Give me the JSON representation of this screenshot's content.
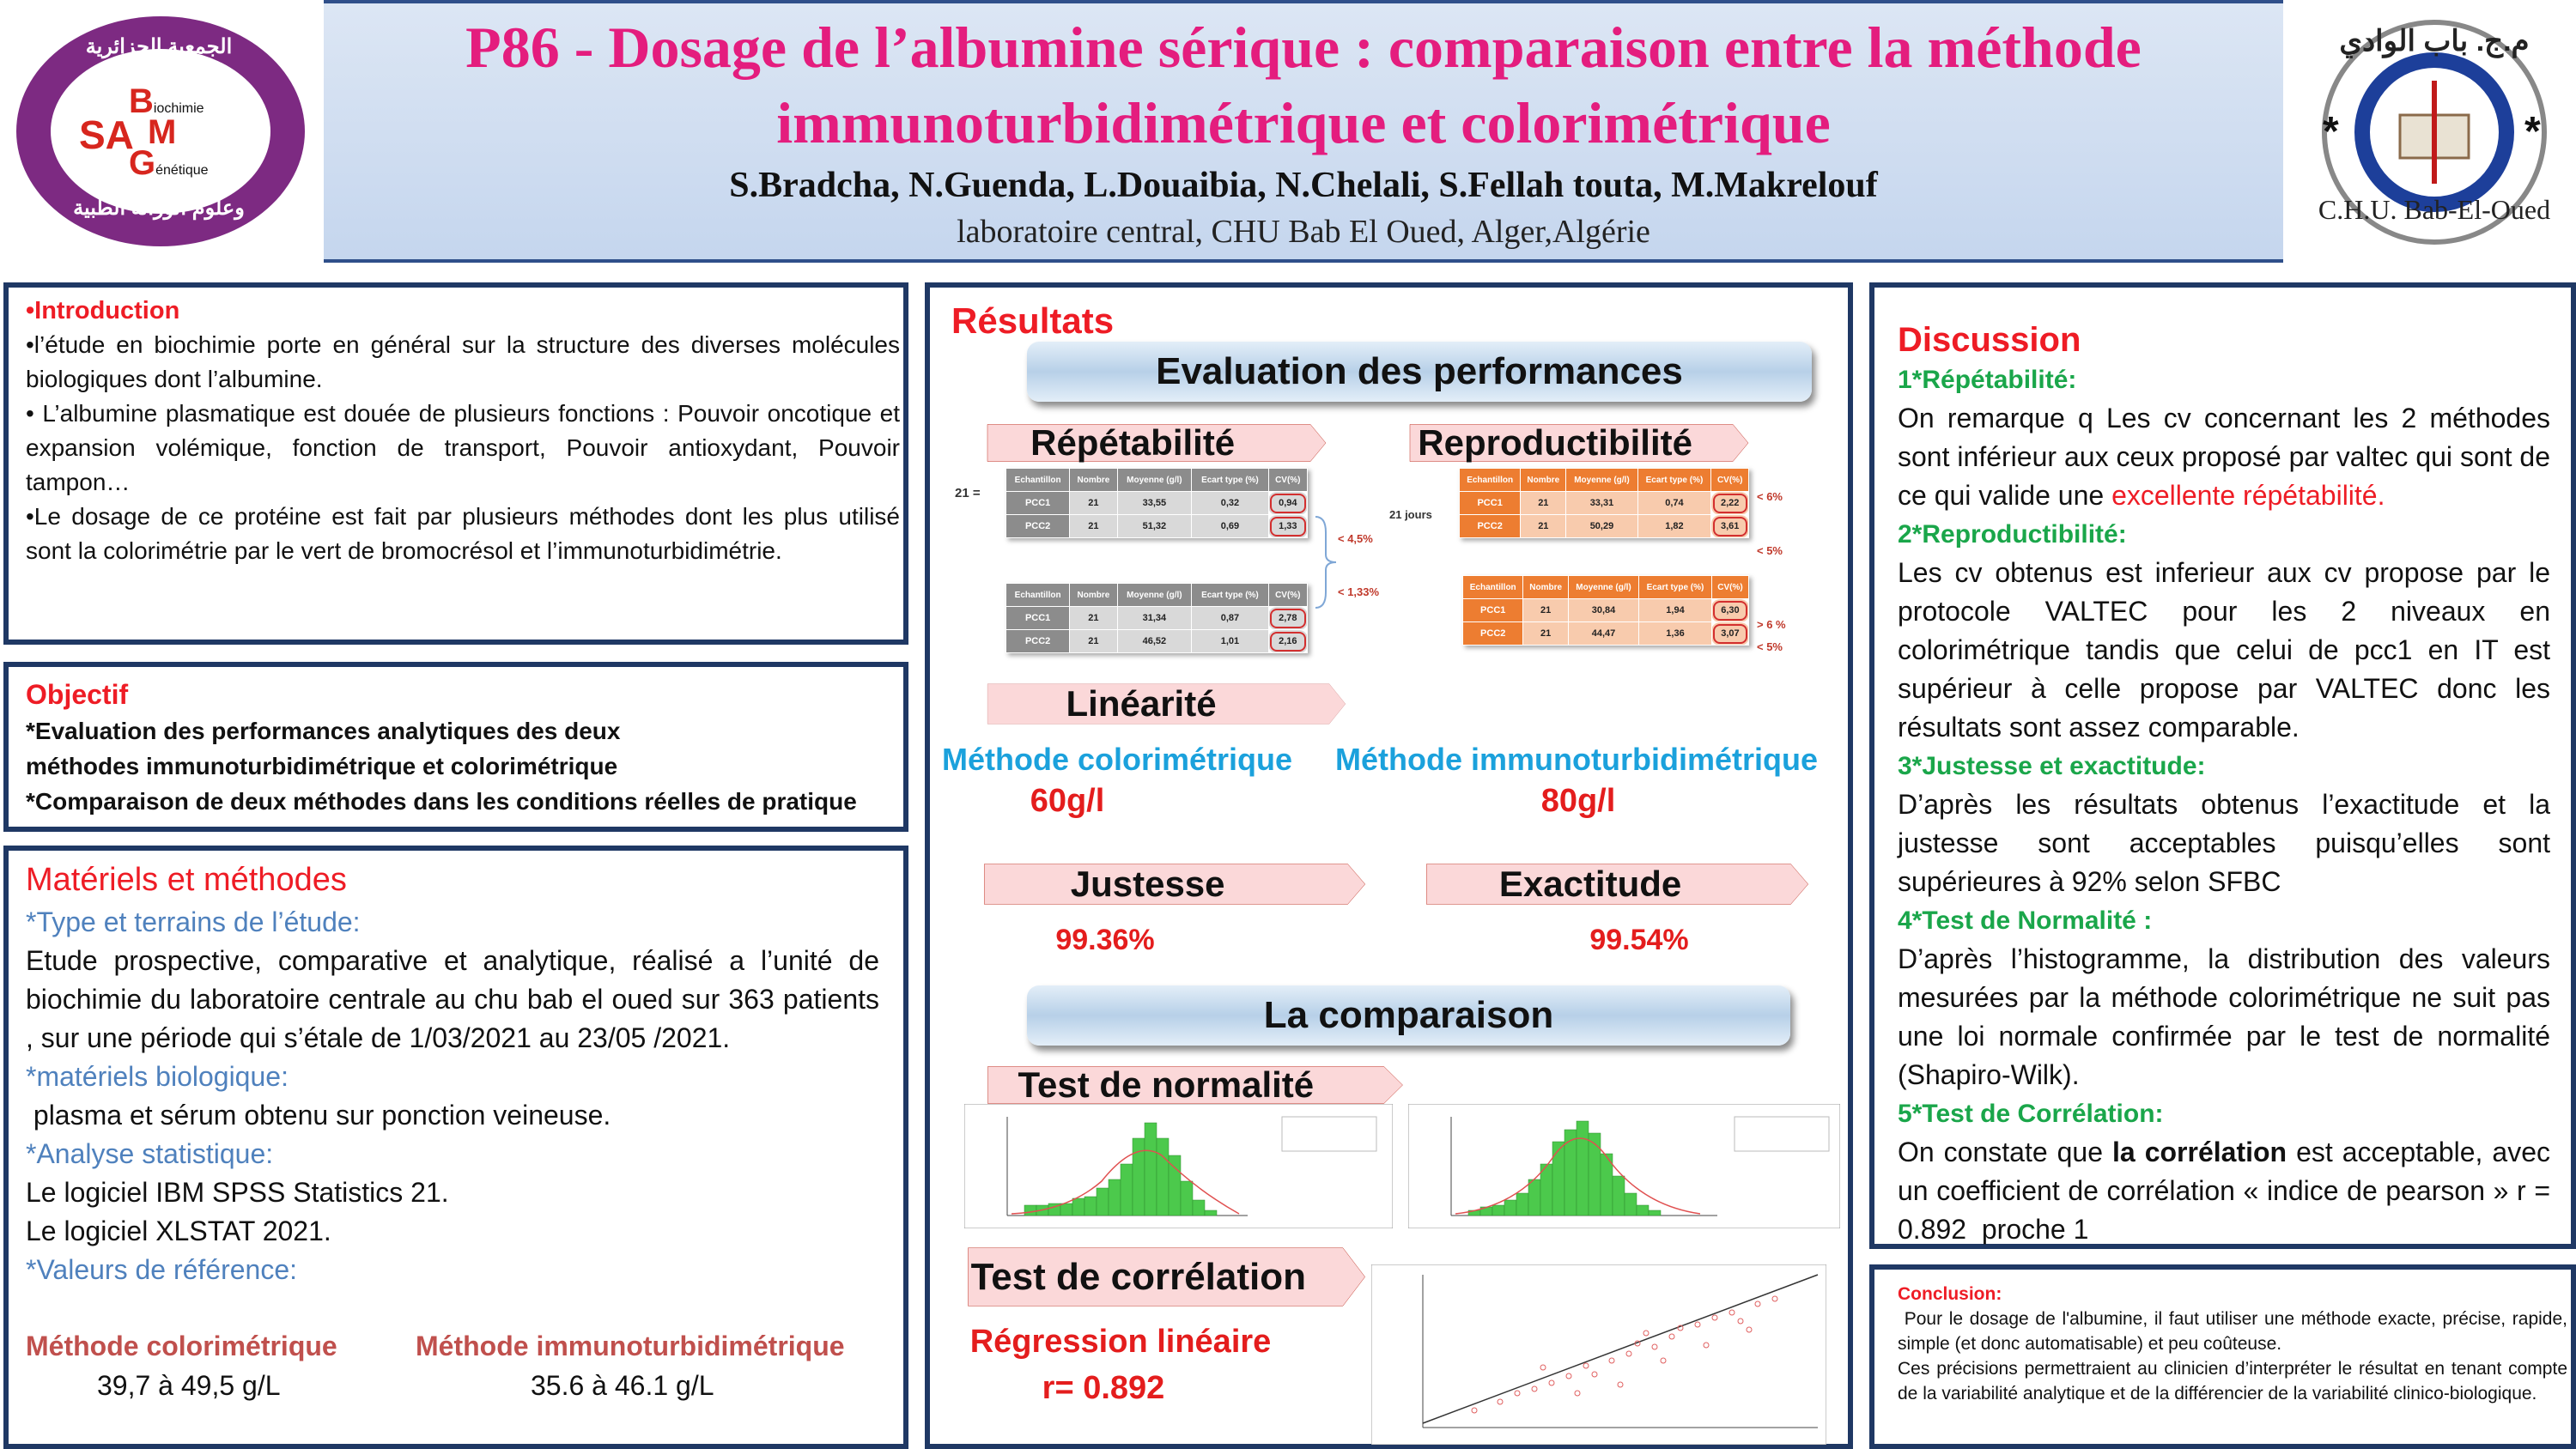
{
  "header": {
    "title_line1": "P86 - Dosage de l’albumine sérique : comparaison entre la méthode",
    "title_line2": "immunoturbidimétrique et colorimétrique",
    "authors": "S.Bradcha, N.Guenda, L.Douaibia, N.Chelali, S.Fellah touta, M.Makrelouf",
    "affiliation": "laboratoire central, CHU Bab El Oued, Alger,Algérie",
    "left_logo": {
      "arabic_top": "الجمعية الجزائرية للبيوكيمياء",
      "arabic_bottom": "وعلوم الوراثة الطبية",
      "sa": "SA",
      "b": "B",
      "b_rest": "iochimie",
      "m": "M",
      "g": "G",
      "g_rest": "énétique"
    },
    "right_logo": {
      "arabic": "م.ج. باب الوادي",
      "latin": "C.H.U. Bab-El-Oued"
    }
  },
  "introduction": {
    "heading": "•Introduction",
    "paragraphs": [
      "•l’étude en biochimie porte en général sur la structure des diverses molécules biologiques  dont l’albumine.",
      "• L’albumine plasmatique est douée de plusieurs fonctions : Pouvoir oncotique et expansion volémique, fonction de transport, Pouvoir antioxydant, Pouvoir tampon…",
      "•Le dosage de ce protéine est fait par plusieurs méthodes dont les plus utilisé sont la colorimétrie par le vert de bromocrésol et l’immunoturbidimétrie."
    ]
  },
  "objectif": {
    "heading": "Objectif",
    "lines": [
      "*Evaluation des performances analytiques des deux",
      "méthodes immunoturbidimétrique et colorimétrique",
      "*Comparaison de deux méthodes dans les conditions réelles de pratique"
    ]
  },
  "materiels": {
    "heading": "Matériels et méthodes",
    "type_heading": "*Type et terrains de l’étude:",
    "type_text": "Etude prospective, comparative et analytique, réalisé a l’unité de biochimie  du laboratoire centrale au chu bab el oued sur 363 patients , sur une période qui s’étale de 1/03/2021 au 23/05 /2021.",
    "bio_heading": "*matériels biologique:",
    "bio_text": " plasma et sérum obtenu sur ponction veineuse.",
    "stat_heading": "*Analyse statistique:",
    "stat_lines": [
      "Le logiciel IBM SPSS Statistics 21.",
      "Le logiciel XLSTAT 2021."
    ],
    "ref_heading": "*Valeurs de référence:",
    "references": [
      {
        "method": "Méthode colorimétrique",
        "range": "39,7 à 49,5 g/L"
      },
      {
        "method": "Méthode immunoturbidimétrique",
        "range": "35.6 à 46.1 g/L"
      }
    ]
  },
  "resultats": {
    "heading": "Résultats",
    "banner1": "Evaluation des performances",
    "repetabilite": {
      "label": "Répétabilité",
      "side_label": "21 =",
      "notes": [
        "< 4,5%",
        "< 1,33%"
      ],
      "tables": [
        {
          "header": [
            "Echantillon",
            "Nombre",
            "Moyenne (g/l)",
            "Ecart type (%)",
            "CV(%)"
          ],
          "rows": [
            [
              "PCC1",
              "21",
              "33,55",
              "0,32",
              "0,94"
            ],
            [
              "PCC2",
              "21",
              "51,32",
              "0,69",
              "1,33"
            ]
          ]
        },
        {
          "header": [
            "Echantillon",
            "Nombre",
            "Moyenne (g/l)",
            "Ecart type (%)",
            "CV(%)"
          ],
          "rows": [
            [
              "PCC1",
              "21",
              "31,34",
              "0,87",
              "2,78"
            ],
            [
              "PCC2",
              "21",
              "46,52",
              "1,01",
              "2,16"
            ]
          ]
        }
      ]
    },
    "reproductibilite": {
      "label": "Reproductibilité",
      "side_label": "21 jours",
      "notes": [
        "< 6%",
        "< 5%",
        "> 6 %",
        "< 5%"
      ],
      "tables": [
        {
          "header": [
            "Echantillon",
            "Nombre",
            "Moyenne (g/l)",
            "Ecart type (%)",
            "CV(%)"
          ],
          "rows": [
            [
              "PCC1",
              "21",
              "33,31",
              "0,74",
              "2,22"
            ],
            [
              "PCC2",
              "21",
              "50,29",
              "1,82",
              "3,61"
            ]
          ]
        },
        {
          "header": [
            "Echantillon",
            "Nombre",
            "Moyenne (g/l)",
            "Ecart type (%)",
            "CV(%)"
          ],
          "rows": [
            [
              "PCC1",
              "21",
              "30,84",
              "1,94",
              "6,30"
            ],
            [
              "PCC2",
              "21",
              "44,47",
              "1,36",
              "3,07"
            ]
          ]
        }
      ]
    },
    "linearite": {
      "label": "Linéarité",
      "methods": [
        {
          "name": "Méthode colorimétrique",
          "value": "60g/l"
        },
        {
          "name": "Méthode immunoturbidimétrique",
          "value": "80g/l"
        }
      ]
    },
    "justesse": {
      "label": "Justesse",
      "value": "99.36%"
    },
    "exactitude": {
      "label": "Exactitude",
      "value": "99.54%"
    },
    "banner2": "La comparaison",
    "normalite": {
      "label": "Test de normalité"
    },
    "correlation": {
      "label": "Test de corrélation",
      "method": "Régression linéaire",
      "r": "r= 0.892"
    }
  },
  "discussion": {
    "heading": "Discussion",
    "items": [
      {
        "heading": "1*Répétabilité:",
        "parts": [
          "On remarque q Les cv concernant les 2 méthodes sont inférieur aux ceux proposé par valtec qui sont de ce qui valide une ",
          "excellente répétabilité."
        ]
      },
      {
        "heading": "2*Reproductibilité:",
        "parts": [
          "Les cv obtenus est inferieur aux cv propose par le protocole VALTEC pour les 2 niveaux en colorimétrique  tandis que celui de pcc1 en IT est supérieur à celle propose par VALTEC donc les résultats sont assez comparable."
        ]
      },
      {
        "heading": "3*Justesse et exactitude:",
        "parts": [
          "D’après les résultats obtenus l’exactitude et la justesse sont acceptables puisqu’elles sont supérieures à 92% selon SFBC"
        ]
      },
      {
        "heading": "4*Test de Normalité :",
        "parts": [
          "D’après l’histogramme, la distribution des valeurs mesurées par la méthode colorimétrique ne suit pas une loi normale confirmée par le test de normalité (Shapiro-Wilk)."
        ]
      },
      {
        "heading": "5*Test de Corrélation:",
        "parts": [
          "On constate que ",
          "la corrélation",
          " est acceptable, avec un coefficient de corrélation « indice de pearson » r = 0.892  proche 1"
        ]
      }
    ]
  },
  "conclusion": {
    "heading": "Conclusion:",
    "paragraphs": [
      " Pour le dosage de l'albumine, il faut utiliser une méthode exacte, précise, rapide, simple (et donc automatisable) et peu coûteuse.",
      "Ces précisions permettraient au clinicien d’interpréter le résultat en tenant compte de la variabilité analytique et de la différencier de la variabilité clinico-biologique."
    ]
  }
}
